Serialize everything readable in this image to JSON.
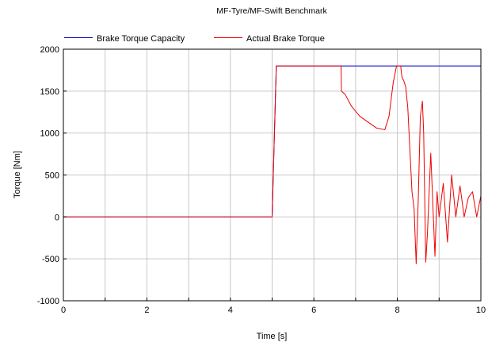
{
  "chart_data": {
    "type": "line",
    "title": "MF-Tyre/MF-Swift Benchmark",
    "xlabel": "Time [s]",
    "ylabel": "Torque [Nm]",
    "xlim": [
      0,
      10
    ],
    "ylim": [
      -1000,
      2000
    ],
    "xticks": [
      "0",
      "2",
      "4",
      "6",
      "8",
      "10"
    ],
    "yticks": [
      "2000",
      "1500",
      "1000",
      "500",
      "0",
      "-500",
      "-1000"
    ],
    "grid": true,
    "legend_position": "top",
    "series": [
      {
        "name": "Brake Torque Capacity",
        "color": "#0000cc",
        "x": [
          0,
          5.0,
          5.1,
          10
        ],
        "y": [
          0,
          0,
          1800,
          1800
        ]
      },
      {
        "name": "Actual Brake Torque",
        "color": "#ee0000",
        "x": [
          0,
          5.0,
          5.1,
          6.65,
          6.66,
          6.75,
          6.9,
          7.1,
          7.3,
          7.5,
          7.7,
          7.8,
          7.9,
          7.98,
          8.0,
          8.05,
          8.08,
          8.1,
          8.12,
          8.15,
          8.2,
          8.25,
          8.3,
          8.35,
          8.4,
          8.45,
          8.5,
          8.55,
          8.6,
          8.63,
          8.68,
          8.72,
          8.8,
          8.9,
          8.95,
          9.0,
          9.1,
          9.2,
          9.3,
          9.4,
          9.5,
          9.6,
          9.7,
          9.8,
          9.9,
          10.0
        ],
        "y": [
          0,
          0,
          1800,
          1800,
          1500,
          1460,
          1320,
          1200,
          1130,
          1060,
          1040,
          1200,
          1600,
          1800,
          1800,
          1800,
          1800,
          1700,
          1650,
          1630,
          1550,
          1300,
          800,
          300,
          100,
          -560,
          200,
          1200,
          1380,
          1000,
          -540,
          -200,
          760,
          -470,
          300,
          0,
          400,
          -300,
          500,
          0,
          370,
          0,
          230,
          300,
          0,
          250
        ]
      }
    ]
  }
}
